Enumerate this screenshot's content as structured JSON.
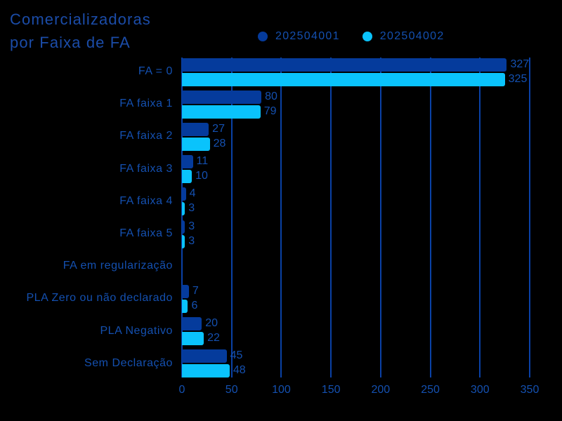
{
  "background": "#000000",
  "title": {
    "line1": "Comercializadoras",
    "line2": "por Faixa de FA",
    "color": "#1B4CA8"
  },
  "chart_data": {
    "type": "bar",
    "orientation": "horizontal",
    "title": "Comercializadoras por Faixa de FA",
    "categories": [
      "FA = 0",
      "FA faixa 1",
      "FA faixa 2",
      "FA faixa 3",
      "FA faixa 4",
      "FA faixa 5",
      "FA em regularização",
      "PLA Zero ou não declarado",
      "PLA Negativo",
      "Sem Declaração"
    ],
    "series": [
      {
        "name": "202504001",
        "color": "#053B9C",
        "values": [
          327,
          80,
          27,
          11,
          4,
          3,
          0,
          7,
          20,
          45
        ]
      },
      {
        "name": "202504002",
        "color": "#0AC3FC",
        "values": [
          325,
          79,
          28,
          10,
          3,
          3,
          0,
          6,
          22,
          48
        ]
      }
    ],
    "xlim": [
      0,
      350
    ],
    "xticks": [
      0,
      50,
      100,
      150,
      200,
      250,
      300,
      350
    ],
    "grid": true,
    "value_labels": true,
    "legend_position": "top",
    "text_color": "#1450B0",
    "grid_color": "#0A41A6"
  }
}
